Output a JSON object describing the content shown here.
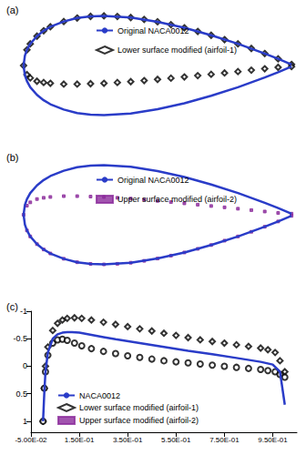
{
  "chart_data": [
    {
      "type": "line",
      "title": "(a)",
      "tick_labels": false,
      "legend": "top",
      "xlim": [
        -0.02,
        1.02
      ],
      "ylim": [
        -0.066,
        0.066
      ],
      "series": [
        {
          "name": "Original NACA0012",
          "type": "line",
          "color": "#2a3cc8",
          "line_style": "solid",
          "x": [
            1,
            0.95,
            0.9,
            0.8,
            0.7,
            0.6,
            0.5,
            0.4,
            0.3,
            0.25,
            0.2,
            0.15,
            0.1,
            0.075,
            0.05,
            0.025,
            0.0125,
            0.005,
            0,
            0.005,
            0.0125,
            0.025,
            0.05,
            0.075,
            0.1,
            0.15,
            0.2,
            0.25,
            0.3,
            0.4,
            0.5,
            0.6,
            0.7,
            0.8,
            0.9,
            0.95,
            1
          ],
          "values": [
            0.0013,
            0.0081,
            0.0145,
            0.0262,
            0.0366,
            0.0456,
            0.0529,
            0.058,
            0.06,
            0.0594,
            0.0574,
            0.0532,
            0.0468,
            0.042,
            0.0355,
            0.0262,
            0.0189,
            0.012,
            0,
            -0.012,
            -0.0189,
            -0.0262,
            -0.0355,
            -0.042,
            -0.0468,
            -0.0532,
            -0.0574,
            -0.0594,
            -0.06,
            -0.058,
            -0.0529,
            -0.0456,
            -0.0366,
            -0.0262,
            -0.0145,
            -0.0081,
            -0.0013
          ]
        },
        {
          "name": "Lower surface modified (airfoil-1)",
          "type": "scatter",
          "color": "#000000",
          "marker": "diamond",
          "x": [
            1,
            0.95,
            0.9,
            0.85,
            0.8,
            0.75,
            0.7,
            0.65,
            0.6,
            0.55,
            0.5,
            0.45,
            0.4,
            0.35,
            0.3,
            0.25,
            0.2,
            0.15,
            0.1,
            0.075,
            0.05,
            0.025,
            0.0125,
            0,
            0.0125,
            0.025,
            0.05,
            0.075,
            0.1,
            0.15,
            0.2,
            0.25,
            0.3,
            0.35,
            0.4,
            0.45,
            0.5,
            0.55,
            0.6,
            0.65,
            0.7,
            0.75,
            0.8,
            0.85,
            0.9,
            0.95,
            1
          ],
          "values": [
            0.0013,
            0.0081,
            0.0145,
            0.0206,
            0.0262,
            0.0313,
            0.0366,
            0.0412,
            0.0456,
            0.0494,
            0.0529,
            0.0557,
            0.058,
            0.0593,
            0.06,
            0.0594,
            0.0574,
            0.0532,
            0.0468,
            0.042,
            0.0355,
            0.0262,
            0.0189,
            0,
            -0.011,
            -0.015,
            -0.019,
            -0.0205,
            -0.0215,
            -0.0225,
            -0.0225,
            -0.022,
            -0.0215,
            -0.0205,
            -0.0195,
            -0.0182,
            -0.0168,
            -0.0153,
            -0.0138,
            -0.0122,
            -0.0106,
            -0.009,
            -0.0073,
            -0.0056,
            -0.0039,
            -0.0022,
            -0.0013
          ]
        }
      ]
    },
    {
      "type": "line",
      "title": "(b)",
      "tick_labels": false,
      "legend": "top",
      "xlim": [
        -0.02,
        1.02
      ],
      "ylim": [
        -0.066,
        0.066
      ],
      "series": [
        {
          "name": "Original NACA0012",
          "type": "line",
          "color": "#2a3cc8",
          "line_style": "solid",
          "x": [
            1,
            0.95,
            0.9,
            0.8,
            0.7,
            0.6,
            0.5,
            0.4,
            0.3,
            0.25,
            0.2,
            0.15,
            0.1,
            0.075,
            0.05,
            0.025,
            0.0125,
            0.005,
            0,
            0.005,
            0.0125,
            0.025,
            0.05,
            0.075,
            0.1,
            0.15,
            0.2,
            0.25,
            0.3,
            0.4,
            0.5,
            0.6,
            0.7,
            0.8,
            0.9,
            0.95,
            1
          ],
          "values": [
            0.0013,
            0.0081,
            0.0145,
            0.0262,
            0.0366,
            0.0456,
            0.0529,
            0.058,
            0.06,
            0.0594,
            0.0574,
            0.0532,
            0.0468,
            0.042,
            0.0355,
            0.0262,
            0.0189,
            0.012,
            0,
            -0.012,
            -0.0189,
            -0.0262,
            -0.0355,
            -0.042,
            -0.0468,
            -0.0532,
            -0.0574,
            -0.0594,
            -0.06,
            -0.058,
            -0.0529,
            -0.0456,
            -0.0366,
            -0.0262,
            -0.0145,
            -0.0081,
            -0.0013
          ]
        },
        {
          "name": "Upper surface modified (airfoil-2)",
          "type": "scatter",
          "color": "#8b2a9b",
          "marker": "square",
          "x": [
            1,
            0.95,
            0.9,
            0.85,
            0.8,
            0.75,
            0.7,
            0.65,
            0.6,
            0.55,
            0.5,
            0.45,
            0.4,
            0.35,
            0.3,
            0.25,
            0.2,
            0.15,
            0.1,
            0.075,
            0.05,
            0.025,
            0.0125,
            0,
            0.0125,
            0.025,
            0.05,
            0.075,
            0.1,
            0.15,
            0.2,
            0.25,
            0.3,
            0.35,
            0.4,
            0.45,
            0.5,
            0.55,
            0.6,
            0.65,
            0.7,
            0.75,
            0.8,
            0.85,
            0.9,
            0.95,
            1
          ],
          "values": [
            0.0013,
            0.0022,
            0.0039,
            0.0056,
            0.0073,
            0.009,
            0.0106,
            0.0122,
            0.0138,
            0.0153,
            0.0168,
            0.0182,
            0.0195,
            0.0205,
            0.0215,
            0.022,
            0.0225,
            0.0225,
            0.0215,
            0.0205,
            0.019,
            0.015,
            0.011,
            0,
            -0.0189,
            -0.0262,
            -0.0355,
            -0.042,
            -0.0468,
            -0.0532,
            -0.0574,
            -0.0594,
            -0.06,
            -0.0593,
            -0.058,
            -0.0557,
            -0.0529,
            -0.0494,
            -0.0456,
            -0.0412,
            -0.0366,
            -0.0313,
            -0.0262,
            -0.0206,
            -0.0145,
            -0.0081,
            -0.0013
          ]
        }
      ]
    },
    {
      "type": "line",
      "title": "(c)",
      "legend": "bottom-left",
      "log": false,
      "grid": false,
      "xlim": [
        -0.05,
        1.05
      ],
      "xticks": [
        {
          "value": -0.05,
          "label": "-5.00E-02"
        },
        {
          "value": 0.15,
          "label": "1.50E-01"
        },
        {
          "value": 0.35,
          "label": "3.50E-01"
        },
        {
          "value": 0.55,
          "label": "5.50E-01"
        },
        {
          "value": 0.75,
          "label": "7.50E-01"
        },
        {
          "value": 0.95,
          "label": "9.50E-01"
        }
      ],
      "ylim": [
        -1,
        1.2
      ],
      "yticks": [
        -1,
        -0.5,
        0,
        0.5,
        1
      ],
      "y_inverted": true,
      "series": [
        {
          "name": "NACA0012",
          "type": "line",
          "color": "#2a3cc8",
          "line_style": "solid",
          "x": [
            0,
            0.005,
            0.01,
            0.02,
            0.04,
            0.06,
            0.08,
            0.1,
            0.12,
            0.15,
            0.2,
            0.25,
            0.3,
            0.4,
            0.5,
            0.6,
            0.7,
            0.8,
            0.9,
            0.95,
            0.98,
            1
          ],
          "values": [
            1,
            0.5,
            0.1,
            -0.25,
            -0.5,
            -0.58,
            -0.61,
            -0.62,
            -0.62,
            -0.61,
            -0.57,
            -0.53,
            -0.49,
            -0.42,
            -0.35,
            -0.28,
            -0.22,
            -0.15,
            -0.08,
            -0.03,
            0.1,
            0.7
          ]
        },
        {
          "name": "Lower surface modified (airfoil-1)",
          "type": "scatter",
          "color": "#000000",
          "marker": "diamond",
          "x": [
            0,
            0.005,
            0.01,
            0.02,
            0.04,
            0.06,
            0.08,
            0.1,
            0.13,
            0.16,
            0.2,
            0.25,
            0.3,
            0.35,
            0.4,
            0.45,
            0.5,
            0.55,
            0.6,
            0.65,
            0.7,
            0.75,
            0.8,
            0.85,
            0.9,
            0.93,
            0.96,
            0.98,
            1
          ],
          "values": [
            1,
            0.4,
            0,
            -0.35,
            -0.65,
            -0.78,
            -0.84,
            -0.87,
            -0.88,
            -0.87,
            -0.84,
            -0.8,
            -0.76,
            -0.72,
            -0.68,
            -0.64,
            -0.6,
            -0.56,
            -0.52,
            -0.48,
            -0.45,
            -0.42,
            -0.39,
            -0.36,
            -0.33,
            -0.3,
            -0.25,
            -0.1,
            0.1
          ]
        },
        {
          "name": "Upper surface modified (airfoil-2)",
          "type": "scatter",
          "color": "#000000",
          "marker": "circle",
          "x": [
            0,
            0.005,
            0.01,
            0.02,
            0.04,
            0.06,
            0.08,
            0.1,
            0.13,
            0.16,
            0.2,
            0.25,
            0.3,
            0.35,
            0.4,
            0.45,
            0.5,
            0.55,
            0.6,
            0.65,
            0.7,
            0.75,
            0.8,
            0.85,
            0.9,
            0.93,
            0.96,
            0.98,
            1
          ],
          "values": [
            1,
            0.4,
            0.1,
            -0.2,
            -0.42,
            -0.48,
            -0.49,
            -0.47,
            -0.42,
            -0.37,
            -0.32,
            -0.27,
            -0.23,
            -0.19,
            -0.16,
            -0.13,
            -0.1,
            -0.08,
            -0.06,
            -0.04,
            -0.02,
            0,
            0.02,
            0.04,
            0.06,
            0.08,
            0.1,
            0.15,
            0.2
          ]
        }
      ]
    }
  ]
}
